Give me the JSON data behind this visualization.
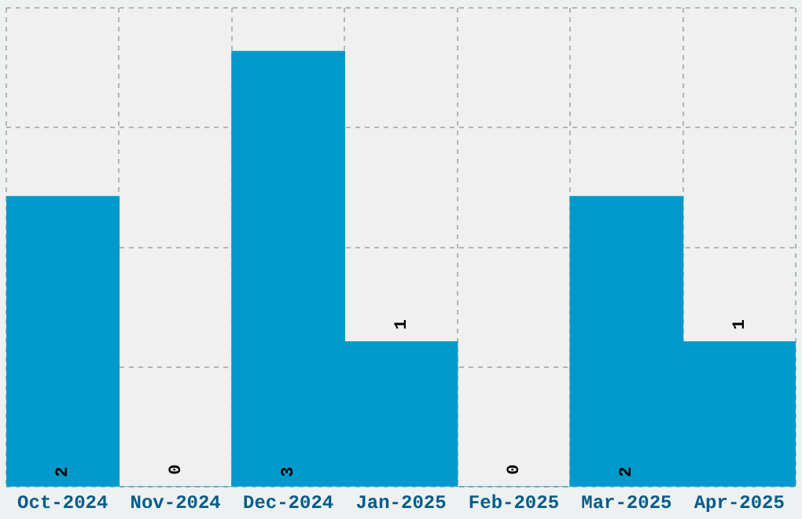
{
  "chart_data": {
    "type": "bar",
    "categories": [
      "Oct-2024",
      "Nov-2024",
      "Dec-2024",
      "Jan-2025",
      "Feb-2025",
      "Mar-2025",
      "Apr-2025"
    ],
    "values": [
      2,
      0,
      3,
      1,
      0,
      2,
      1
    ],
    "color": "#0099cc",
    "ylim": [
      0,
      3.3
    ],
    "yticks": [
      {
        "value": 0,
        "label": null
      },
      {
        "value": 0.825,
        "label": null
      },
      {
        "value": 1.65,
        "label": null
      },
      {
        "value": 2.475,
        "label": null
      },
      {
        "value": 3.3,
        "label": null
      }
    ],
    "grid": true,
    "tick_labels": "x",
    "data_labels": true
  }
}
